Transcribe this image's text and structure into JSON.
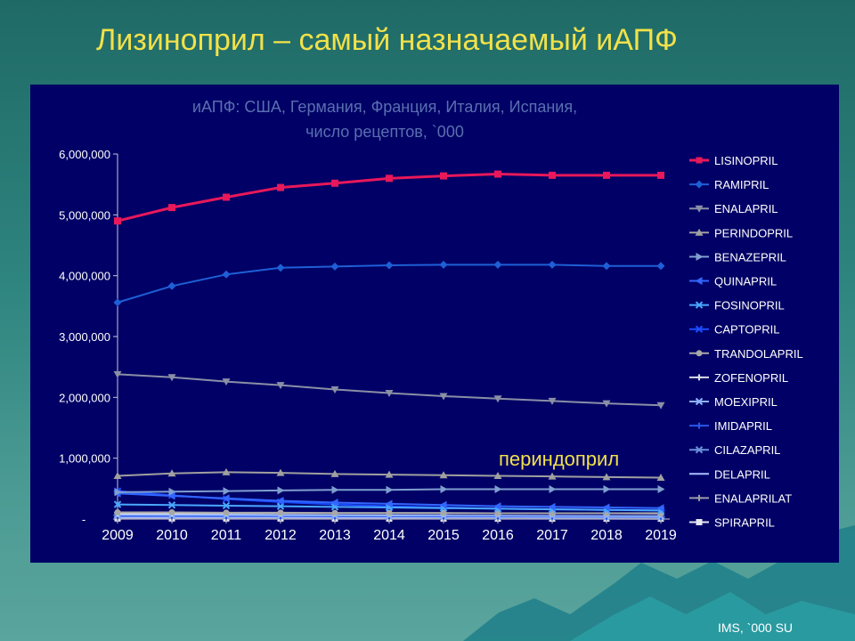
{
  "slide": {
    "title": "Лизиноприл – самый назначаемый иАПФ",
    "source": "IMS, `000 SU"
  },
  "chart_data": {
    "type": "line",
    "title_line1": "иАПФ: США, Германия, Франция, Италия, Испания,",
    "title_line2": "число рецептов, `000",
    "annotation": "периндоприл",
    "x": [
      "2009",
      "2010",
      "2011",
      "2012",
      "2013",
      "2014",
      "2015",
      "2016",
      "2017",
      "2018",
      "2019"
    ],
    "ylim": [
      0,
      6000000
    ],
    "yticks": [
      {
        "value": 0,
        "label": "-"
      },
      {
        "value": 1000000,
        "label": "1,000,000"
      },
      {
        "value": 2000000,
        "label": "2,000,000"
      },
      {
        "value": 3000000,
        "label": "3,000,000"
      },
      {
        "value": 4000000,
        "label": "4,000,000"
      },
      {
        "value": 5000000,
        "label": "5,000,000"
      },
      {
        "value": 6000000,
        "label": "6,000,000"
      }
    ],
    "legend_position": "right",
    "colors": {
      "panel_bg": "#000066",
      "title_yellow": "#f2e14a",
      "chart_title": "#5a6fb0",
      "annotation": "#f2e14a"
    },
    "series": [
      {
        "name": "LISINOPRIL",
        "color": "#e8185a",
        "marker": "square",
        "width": 3,
        "values": [
          4900000,
          5120000,
          5290000,
          5450000,
          5520000,
          5600000,
          5640000,
          5670000,
          5650000,
          5650000,
          5650000
        ]
      },
      {
        "name": "RAMIPRIL",
        "color": "#1f5fd6",
        "marker": "diamond",
        "width": 2,
        "values": [
          3560000,
          3830000,
          4020000,
          4130000,
          4150000,
          4170000,
          4180000,
          4180000,
          4180000,
          4160000,
          4160000
        ]
      },
      {
        "name": "ENALAPRIL",
        "color": "#8a8fa6",
        "marker": "tri-down",
        "width": 2,
        "values": [
          2380000,
          2330000,
          2260000,
          2200000,
          2130000,
          2070000,
          2020000,
          1980000,
          1940000,
          1900000,
          1870000
        ]
      },
      {
        "name": "PERINDOPRIL",
        "color": "#a0a0a0",
        "marker": "tri-up",
        "width": 2,
        "values": [
          710000,
          750000,
          770000,
          760000,
          740000,
          730000,
          720000,
          710000,
          700000,
          690000,
          680000
        ]
      },
      {
        "name": "BENAZEPRIL",
        "color": "#7f9fcf",
        "marker": "tri-right",
        "width": 2,
        "values": [
          440000,
          450000,
          460000,
          470000,
          480000,
          480000,
          490000,
          490000,
          490000,
          490000,
          490000
        ]
      },
      {
        "name": "QUINAPRIL",
        "color": "#3366ff",
        "marker": "tri-left",
        "width": 2,
        "values": [
          420000,
          380000,
          340000,
          300000,
          270000,
          250000,
          230000,
          210000,
          200000,
          190000,
          180000
        ]
      },
      {
        "name": "FOSINOPRIL",
        "color": "#4aa8ff",
        "marker": "x",
        "width": 2,
        "values": [
          240000,
          230000,
          220000,
          210000,
          200000,
          190000,
          180000,
          170000,
          160000,
          150000,
          140000
        ]
      },
      {
        "name": "CAPTOPRIL",
        "color": "#1a4cff",
        "marker": "star",
        "width": 2,
        "values": [
          460000,
          390000,
          330000,
          280000,
          240000,
          210000,
          190000,
          170000,
          160000,
          150000,
          140000
        ]
      },
      {
        "name": "TRANDOLAPRIL",
        "color": "#a8a8a8",
        "marker": "circle",
        "width": 2,
        "values": [
          110000,
          110000,
          105000,
          105000,
          100000,
          100000,
          100000,
          95000,
          95000,
          95000,
          90000
        ]
      },
      {
        "name": "ZOFENOPRIL",
        "color": "#d8dce8",
        "marker": "plus",
        "width": 2,
        "values": [
          90000,
          92000,
          95000,
          95000,
          95000,
          95000,
          95000,
          95000,
          95000,
          95000,
          95000
        ]
      },
      {
        "name": "MOEXIPRIL",
        "color": "#8fb3ff",
        "marker": "x",
        "width": 2,
        "values": [
          70000,
          68000,
          65000,
          62000,
          60000,
          58000,
          56000,
          54000,
          52000,
          50000,
          48000
        ]
      },
      {
        "name": "IMIDAPRIL",
        "color": "#2a56e8",
        "marker": "plus",
        "width": 2,
        "values": [
          50000,
          50000,
          48000,
          47000,
          46000,
          45000,
          44000,
          43000,
          42000,
          41000,
          40000
        ]
      },
      {
        "name": "CILAZAPRIL",
        "color": "#6a8fd8",
        "marker": "star",
        "width": 2,
        "values": [
          60000,
          57000,
          54000,
          51000,
          48000,
          45000,
          42000,
          40000,
          38000,
          36000,
          34000
        ]
      },
      {
        "name": "DELAPRIL",
        "color": "#aabfff",
        "marker": "none",
        "width": 2,
        "values": [
          30000,
          30000,
          29000,
          29000,
          28000,
          28000,
          27000,
          27000,
          26000,
          26000,
          25000
        ]
      },
      {
        "name": "ENALAPRILAT",
        "color": "#9a9aa8",
        "marker": "plus",
        "width": 2,
        "values": [
          20000,
          20000,
          19000,
          19000,
          18000,
          18000,
          17000,
          17000,
          16000,
          16000,
          15000
        ]
      },
      {
        "name": "SPIRAPRIL",
        "color": "#e6e6f0",
        "marker": "square",
        "width": 2,
        "values": [
          10000,
          10000,
          9000,
          9000,
          8000,
          8000,
          8000,
          7000,
          7000,
          7000,
          6000
        ]
      }
    ]
  }
}
